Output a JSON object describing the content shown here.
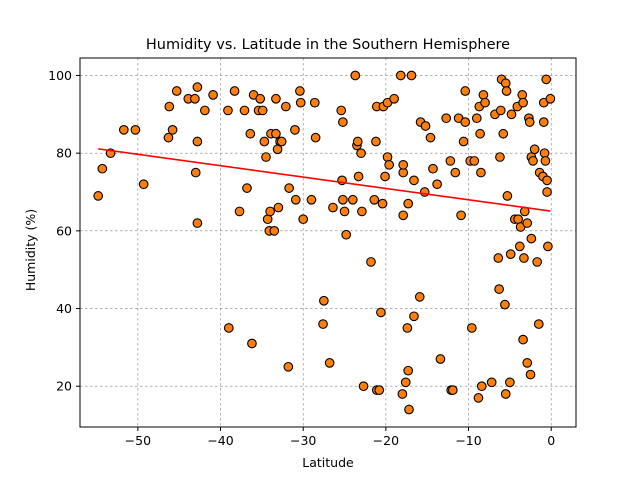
{
  "chart_data": {
    "type": "scatter",
    "title": "Humidity vs. Latitude in the Southern Hemisphere",
    "xlabel": "Latitude",
    "ylabel": "Humidity (%)",
    "xlim": [
      -57,
      3
    ],
    "ylim": [
      9.5,
      104.5
    ],
    "x_ticks": [
      -50,
      -40,
      -30,
      -20,
      -10,
      0
    ],
    "x_tick_labels": [
      "−50",
      "−40",
      "−30",
      "−20",
      "−10",
      "0"
    ],
    "y_ticks": [
      20,
      40,
      60,
      80,
      100
    ],
    "y_tick_labels": [
      "20",
      "40",
      "60",
      "80",
      "100"
    ],
    "grid": true,
    "grid_style": "dashed",
    "colors": {
      "point_fill": "#ff7f0e",
      "point_edge": "#000000",
      "regression_line": "#ff0000",
      "grid": "#808080"
    },
    "regression": {
      "x": [
        -54.8,
        -0.1
      ],
      "y": [
        81.1,
        65.1
      ]
    },
    "series": [
      {
        "points": [
          [
            -54.8,
            69
          ],
          [
            -54.3,
            76
          ],
          [
            -53.3,
            80
          ],
          [
            -51.7,
            86
          ],
          [
            -50.3,
            86
          ],
          [
            -49.3,
            72
          ],
          [
            -46.3,
            84
          ],
          [
            -46.2,
            92
          ],
          [
            -45.8,
            86
          ],
          [
            -45.3,
            96
          ],
          [
            -43.9,
            94
          ],
          [
            -43.1,
            94
          ],
          [
            -43.0,
            75
          ],
          [
            -42.8,
            97
          ],
          [
            -42.8,
            83
          ],
          [
            -42.8,
            62
          ],
          [
            -41.9,
            91
          ],
          [
            -40.9,
            95
          ],
          [
            -39.1,
            91
          ],
          [
            -39.0,
            35
          ],
          [
            -38.3,
            96
          ],
          [
            -37.7,
            65
          ],
          [
            -37.1,
            91
          ],
          [
            -36.8,
            71
          ],
          [
            -36.4,
            85
          ],
          [
            -36.2,
            31
          ],
          [
            -36.0,
            95
          ],
          [
            -35.4,
            91
          ],
          [
            -35.2,
            94
          ],
          [
            -34.9,
            91
          ],
          [
            -34.7,
            83
          ],
          [
            -34.5,
            79
          ],
          [
            -34.3,
            63
          ],
          [
            -34.1,
            60
          ],
          [
            -34.0,
            65
          ],
          [
            -33.9,
            85
          ],
          [
            -33.5,
            60
          ],
          [
            -33.3,
            85
          ],
          [
            -33.3,
            94
          ],
          [
            -33.1,
            81
          ],
          [
            -33.0,
            66
          ],
          [
            -32.8,
            83
          ],
          [
            -32.6,
            83
          ],
          [
            -32.1,
            92
          ],
          [
            -31.8,
            25
          ],
          [
            -31.7,
            71
          ],
          [
            -31.0,
            86
          ],
          [
            -30.9,
            68
          ],
          [
            -30.4,
            96
          ],
          [
            -30.3,
            93
          ],
          [
            -30.0,
            63
          ],
          [
            -29.0,
            68
          ],
          [
            -28.6,
            93
          ],
          [
            -28.5,
            84
          ],
          [
            -27.6,
            36
          ],
          [
            -27.5,
            42
          ],
          [
            -26.8,
            26
          ],
          [
            -26.4,
            66
          ],
          [
            -25.4,
            91
          ],
          [
            -25.3,
            73
          ],
          [
            -25.2,
            88
          ],
          [
            -25.2,
            68
          ],
          [
            -25.0,
            65
          ],
          [
            -24.8,
            59
          ],
          [
            -24.0,
            68
          ],
          [
            -23.7,
            100
          ],
          [
            -23.5,
            82
          ],
          [
            -23.4,
            83
          ],
          [
            -23.3,
            74
          ],
          [
            -23.0,
            80
          ],
          [
            -22.9,
            65
          ],
          [
            -22.7,
            20
          ],
          [
            -21.8,
            52
          ],
          [
            -21.4,
            68
          ],
          [
            -21.2,
            83
          ],
          [
            -21.1,
            19
          ],
          [
            -21.1,
            92
          ],
          [
            -20.8,
            19
          ],
          [
            -20.6,
            39
          ],
          [
            -20.4,
            67
          ],
          [
            -20.3,
            92
          ],
          [
            -20.1,
            74
          ],
          [
            -19.8,
            93
          ],
          [
            -19.8,
            79
          ],
          [
            -19.6,
            77
          ],
          [
            -19.0,
            94
          ],
          [
            -18.2,
            100
          ],
          [
            -18.0,
            18
          ],
          [
            -17.9,
            64
          ],
          [
            -17.9,
            75
          ],
          [
            -17.9,
            77
          ],
          [
            -17.6,
            21
          ],
          [
            -17.4,
            35
          ],
          [
            -17.3,
            24
          ],
          [
            -17.3,
            67
          ],
          [
            -17.2,
            14
          ],
          [
            -16.9,
            100
          ],
          [
            -16.6,
            73
          ],
          [
            -16.6,
            38
          ],
          [
            -15.9,
            43
          ],
          [
            -15.8,
            88
          ],
          [
            -15.3,
            70
          ],
          [
            -15.2,
            87
          ],
          [
            -14.6,
            84
          ],
          [
            -14.3,
            76
          ],
          [
            -13.8,
            72
          ],
          [
            -13.4,
            27
          ],
          [
            -12.7,
            89
          ],
          [
            -12.2,
            78
          ],
          [
            -12.1,
            19
          ],
          [
            -11.9,
            19
          ],
          [
            -11.6,
            75
          ],
          [
            -11.2,
            89
          ],
          [
            -10.9,
            64
          ],
          [
            -10.6,
            83
          ],
          [
            -10.4,
            96
          ],
          [
            -10.4,
            88
          ],
          [
            -9.8,
            78
          ],
          [
            -9.6,
            35
          ],
          [
            -9.3,
            78
          ],
          [
            -9.0,
            89
          ],
          [
            -8.8,
            17
          ],
          [
            -8.7,
            92
          ],
          [
            -8.6,
            85
          ],
          [
            -8.5,
            75
          ],
          [
            -8.4,
            20
          ],
          [
            -8.2,
            95
          ],
          [
            -8.0,
            93
          ],
          [
            -7.2,
            21
          ],
          [
            -6.8,
            90
          ],
          [
            -6.4,
            53
          ],
          [
            -6.3,
            45
          ],
          [
            -6.2,
            79
          ],
          [
            -6.1,
            91
          ],
          [
            -6.0,
            99
          ],
          [
            -5.8,
            85
          ],
          [
            -5.6,
            41
          ],
          [
            -5.5,
            18
          ],
          [
            -5.5,
            98
          ],
          [
            -5.4,
            96
          ],
          [
            -5.3,
            69
          ],
          [
            -5.0,
            21
          ],
          [
            -4.9,
            54
          ],
          [
            -4.8,
            90
          ],
          [
            -4.4,
            63
          ],
          [
            -4.1,
            92
          ],
          [
            -4.0,
            63
          ],
          [
            -3.8,
            56
          ],
          [
            -3.7,
            61
          ],
          [
            -3.5,
            95
          ],
          [
            -3.4,
            32
          ],
          [
            -3.4,
            93
          ],
          [
            -3.3,
            53
          ],
          [
            -3.2,
            65
          ],
          [
            -2.9,
            62
          ],
          [
            -2.9,
            26
          ],
          [
            -2.7,
            89
          ],
          [
            -2.6,
            88
          ],
          [
            -2.5,
            23
          ],
          [
            -2.4,
            79
          ],
          [
            -2.4,
            58
          ],
          [
            -2.2,
            78
          ],
          [
            -2.0,
            81
          ],
          [
            -1.7,
            52
          ],
          [
            -1.5,
            36
          ],
          [
            -1.4,
            75
          ],
          [
            -1.0,
            74
          ],
          [
            -0.9,
            88
          ],
          [
            -0.9,
            93
          ],
          [
            -0.8,
            80
          ],
          [
            -0.7,
            78
          ],
          [
            -0.6,
            99
          ],
          [
            -0.5,
            70
          ],
          [
            -0.5,
            73
          ],
          [
            -0.4,
            56
          ],
          [
            -0.1,
            94
          ]
        ]
      }
    ]
  }
}
